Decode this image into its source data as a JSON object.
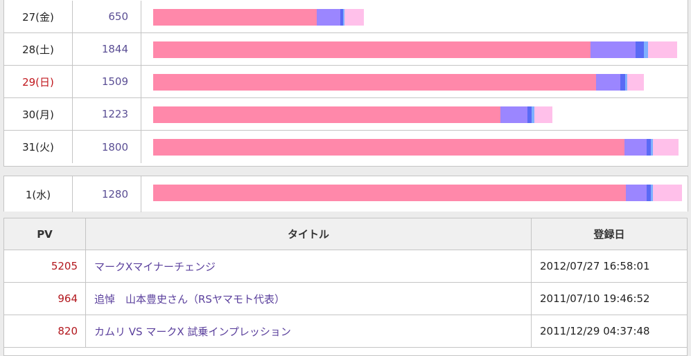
{
  "colors": {
    "bar_segments": [
      "#ff88aa",
      "#9b86ff",
      "#5a6af5",
      "#7fb0ff",
      "#ffc0ea"
    ],
    "sunday_text": "#c0161c",
    "pv_text": "#5a4e94",
    "rank_pv_text": "#b2161c",
    "title_link": "#5a3f9c"
  },
  "daily_stats": [
    {
      "day": "27(金)",
      "pv": "650",
      "segments": [
        236,
        34,
        4,
        2,
        28
      ],
      "sunday": false
    },
    {
      "day": "28(土)",
      "pv": "1844",
      "segments": [
        631,
        65,
        12,
        6,
        42
      ],
      "sunday": false
    },
    {
      "day": "29(日)",
      "pv": "1509",
      "segments": [
        639,
        35,
        7,
        3,
        24
      ],
      "sunday": true
    },
    {
      "day": "30(月)",
      "pv": "1223",
      "segments": [
        501,
        39,
        6,
        4,
        26
      ],
      "sunday": false
    },
    {
      "day": "31(火)",
      "pv": "1800",
      "segments": [
        680,
        32,
        6,
        3,
        37
      ],
      "sunday": false
    }
  ],
  "next_day": {
    "day": "1(水)",
    "pv": "1280",
    "segments": [
      682,
      30,
      6,
      3,
      42
    ],
    "sunday": false
  },
  "ranking": {
    "headers": {
      "pv": "PV",
      "title": "タイトル",
      "date": "登録日"
    },
    "rows": [
      {
        "pv": "5205",
        "title": "マークXマイナーチェンジ",
        "date": "2012/07/27 16:58:01"
      },
      {
        "pv": "964",
        "title": "追悼　山本豊史さん（RSヤマモト代表）",
        "date": "2011/07/10 19:46:52"
      },
      {
        "pv": "820",
        "title": "カムリ VS マークX 試乗インプレッション",
        "date": "2011/12/29 04:37:48"
      }
    ]
  }
}
